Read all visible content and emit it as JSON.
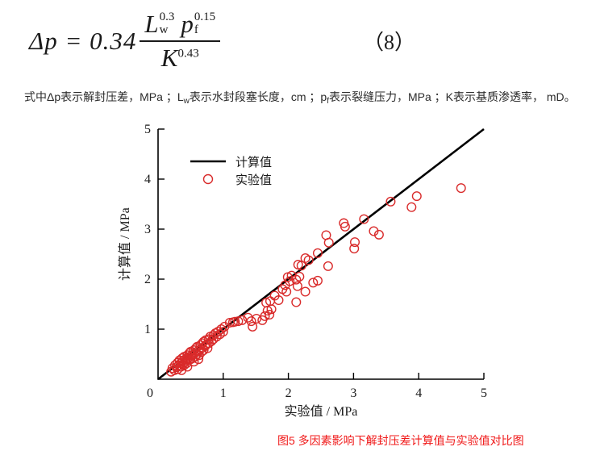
{
  "equation": {
    "lhs": "Δp",
    "equals": "=",
    "coefficient": "0.34",
    "num_var1": "L",
    "num_sub1": "w",
    "num_sup1": "0.3",
    "num_var2": "p",
    "num_sub2": "f",
    "num_sup2": "0.15",
    "den_var": "K",
    "den_sup": "0.43",
    "number": "（8）"
  },
  "description": {
    "part1": "式中Δp表示解封压差，MPa ；L",
    "sub1": "w",
    "part2": "表示水封段塞长度，cm ；p",
    "sub2": "f",
    "part3": "表示裂缝压力，MPa ；K表示基质渗透率， mD。"
  },
  "chart_data": {
    "type": "scatter",
    "title": "",
    "xlabel": "实验值 / MPa",
    "ylabel": "计算值 / MPa",
    "xlim": [
      0,
      5
    ],
    "ylim": [
      0,
      5
    ],
    "x_ticks": [
      0,
      1,
      2,
      3,
      4,
      5
    ],
    "y_ticks": [
      1,
      2,
      3,
      4,
      5
    ],
    "grid": false,
    "legend_position": "upper-left-inside",
    "axis_color": "#000000",
    "series": [
      {
        "name": "计算值",
        "type": "line",
        "color": "#000000",
        "points": [
          [
            0,
            0
          ],
          [
            5,
            5
          ]
        ]
      },
      {
        "name": "实验值",
        "type": "scatter",
        "color": "#d92b2b",
        "points": [
          [
            0.2,
            0.15
          ],
          [
            0.22,
            0.22
          ],
          [
            0.25,
            0.18
          ],
          [
            0.26,
            0.28
          ],
          [
            0.28,
            0.24
          ],
          [
            0.3,
            0.2
          ],
          [
            0.3,
            0.33
          ],
          [
            0.32,
            0.28
          ],
          [
            0.33,
            0.38
          ],
          [
            0.35,
            0.25
          ],
          [
            0.35,
            0.32
          ],
          [
            0.36,
            0.18
          ],
          [
            0.37,
            0.42
          ],
          [
            0.38,
            0.3
          ],
          [
            0.38,
            0.36
          ],
          [
            0.4,
            0.28
          ],
          [
            0.4,
            0.45
          ],
          [
            0.42,
            0.35
          ],
          [
            0.42,
            0.4
          ],
          [
            0.44,
            0.32
          ],
          [
            0.45,
            0.25
          ],
          [
            0.45,
            0.48
          ],
          [
            0.46,
            0.42
          ],
          [
            0.47,
            0.38
          ],
          [
            0.48,
            0.52
          ],
          [
            0.48,
            0.45
          ],
          [
            0.5,
            0.4
          ],
          [
            0.5,
            0.55
          ],
          [
            0.52,
            0.48
          ],
          [
            0.53,
            0.42
          ],
          [
            0.55,
            0.35
          ],
          [
            0.55,
            0.58
          ],
          [
            0.55,
            0.5
          ],
          [
            0.57,
            0.45
          ],
          [
            0.58,
            0.62
          ],
          [
            0.58,
            0.54
          ],
          [
            0.6,
            0.5
          ],
          [
            0.6,
            0.65
          ],
          [
            0.62,
            0.4
          ],
          [
            0.62,
            0.57
          ],
          [
            0.63,
            0.48
          ],
          [
            0.65,
            0.68
          ],
          [
            0.65,
            0.6
          ],
          [
            0.67,
            0.55
          ],
          [
            0.68,
            0.72
          ],
          [
            0.68,
            0.63
          ],
          [
            0.7,
            0.58
          ],
          [
            0.7,
            0.75
          ],
          [
            0.72,
            0.66
          ],
          [
            0.73,
            0.78
          ],
          [
            0.75,
            0.7
          ],
          [
            0.76,
            0.62
          ],
          [
            0.78,
            0.8
          ],
          [
            0.78,
            0.72
          ],
          [
            0.8,
            0.85
          ],
          [
            0.82,
            0.76
          ],
          [
            0.85,
            0.88
          ],
          [
            0.85,
            0.8
          ],
          [
            0.88,
            0.92
          ],
          [
            0.9,
            0.85
          ],
          [
            0.92,
            0.95
          ],
          [
            0.95,
            0.9
          ],
          [
            0.97,
            1.0
          ],
          [
            1.0,
            0.95
          ],
          [
            1.02,
            1.05
          ],
          [
            1.1,
            1.13
          ],
          [
            1.15,
            1.14
          ],
          [
            1.18,
            1.15
          ],
          [
            1.23,
            1.16
          ],
          [
            1.29,
            1.18
          ],
          [
            1.38,
            1.23
          ],
          [
            1.43,
            1.16
          ],
          [
            1.45,
            1.05
          ],
          [
            1.51,
            1.21
          ],
          [
            1.6,
            1.18
          ],
          [
            1.64,
            1.26
          ],
          [
            1.66,
            1.53
          ],
          [
            1.68,
            1.37
          ],
          [
            1.71,
            1.29
          ],
          [
            1.72,
            1.56
          ],
          [
            1.74,
            1.4
          ],
          [
            1.79,
            1.67
          ],
          [
            1.85,
            1.58
          ],
          [
            1.91,
            1.8
          ],
          [
            1.95,
            1.88
          ],
          [
            1.97,
            1.75
          ],
          [
            1.99,
            2.04
          ],
          [
            2.02,
            1.96
          ],
          [
            2.05,
            2.07
          ],
          [
            2.12,
            1.99
          ],
          [
            2.12,
            1.54
          ],
          [
            2.14,
            1.86
          ],
          [
            2.15,
            2.29
          ],
          [
            2.17,
            2.05
          ],
          [
            2.2,
            2.27
          ],
          [
            2.26,
            2.42
          ],
          [
            2.26,
            1.75
          ],
          [
            2.31,
            2.38
          ],
          [
            2.38,
            1.93
          ],
          [
            2.45,
            1.97
          ],
          [
            2.45,
            2.52
          ],
          [
            2.58,
            2.88
          ],
          [
            2.61,
            2.26
          ],
          [
            2.62,
            2.73
          ],
          [
            2.85,
            3.12
          ],
          [
            2.87,
            3.05
          ],
          [
            3.01,
            2.61
          ],
          [
            3.02,
            2.74
          ],
          [
            3.16,
            3.2
          ],
          [
            3.31,
            2.96
          ],
          [
            3.39,
            2.89
          ],
          [
            3.57,
            3.55
          ],
          [
            3.89,
            3.44
          ],
          [
            3.97,
            3.66
          ],
          [
            4.65,
            3.82
          ]
        ]
      }
    ]
  },
  "caption": {
    "text": "图5 多因素影响下解封压差计算值与实验值对比图",
    "color": "#f01818"
  }
}
